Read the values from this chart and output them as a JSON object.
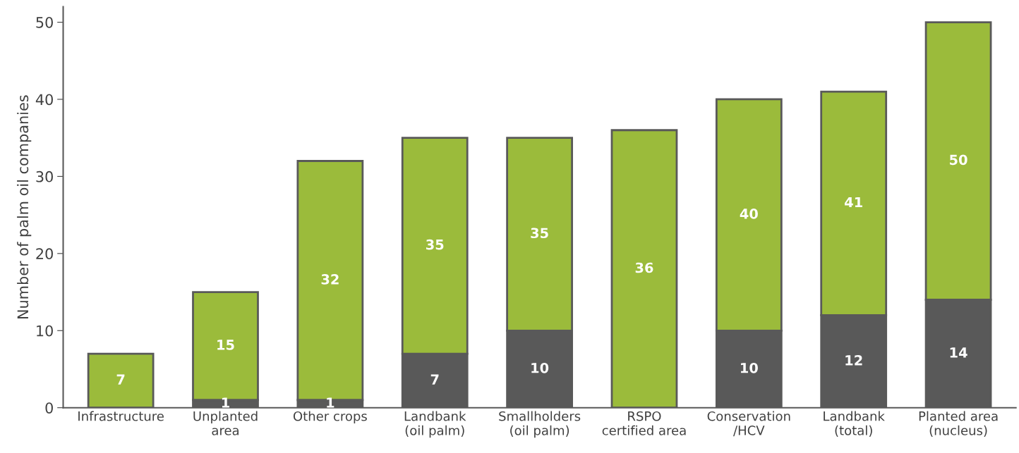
{
  "chart_data": {
    "type": "bar",
    "stacked": true,
    "ylabel": "Number of palm oil companies",
    "categories": [
      "Infrastructure",
      "Unplanted\narea",
      "Other crops",
      "Landbank\n(oil palm)",
      "Smallholders\n(oil palm)",
      "RSPO\ncertified area",
      "Conservation\n/HCV",
      "Landbank\n(total)",
      "Planted area\n(nucleus)"
    ],
    "series": [
      {
        "color": "#595959",
        "values": [
          null,
          1,
          1,
          7,
          10,
          null,
          10,
          12,
          14
        ],
        "value_labels": [
          null,
          "1",
          "1",
          "7",
          "10",
          null,
          "10",
          "12",
          "14"
        ]
      },
      {
        "color": "#9bbb3b",
        "values": [
          7,
          14,
          31,
          28,
          25,
          36,
          30,
          29,
          36
        ]
      }
    ],
    "totals": [
      "7",
      "15",
      "32",
      "35",
      "35",
      "36",
      "40",
      "41",
      "50"
    ],
    "ylim": [
      0,
      52
    ],
    "yticks": [
      0,
      10,
      20,
      30,
      40,
      50
    ],
    "grid": false,
    "legend": false
  }
}
